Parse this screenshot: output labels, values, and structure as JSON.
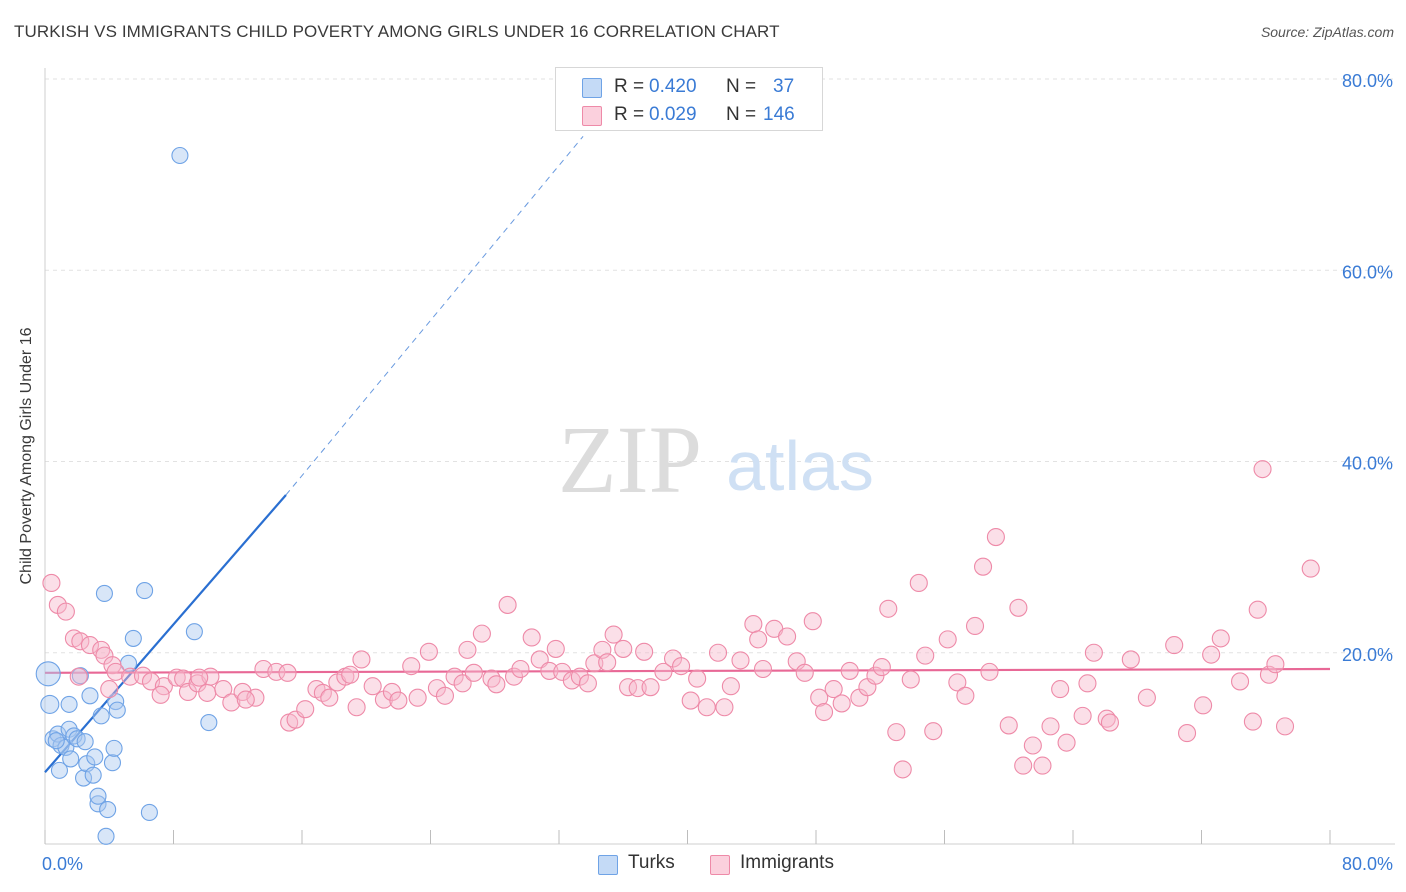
{
  "title": "TURKISH VS IMMIGRANTS CHILD POVERTY AMONG GIRLS UNDER 16 CORRELATION CHART",
  "source": "Source: ZipAtlas.com",
  "watermark": {
    "zip": "ZIP",
    "atlas": "atlas"
  },
  "legend_top": {
    "rows": [
      {
        "r_label": "R =",
        "r_value": "0.420",
        "n_label": "N =",
        "n_value": "37",
        "color": "#a8c8f0"
      },
      {
        "r_label": "R =",
        "r_value": "0.029",
        "n_label": "N =",
        "n_value": "146",
        "color": "#f7b8cb"
      }
    ]
  },
  "legend_bottom": [
    {
      "label": "Turks",
      "color": "#a8c8f0"
    },
    {
      "label": "Immigrants",
      "color": "#f7b8cb"
    }
  ],
  "chart_data": {
    "type": "scatter",
    "title": "TURKISH VS IMMIGRANTS CHILD POVERTY AMONG GIRLS UNDER 16 CORRELATION CHART",
    "xlabel": "",
    "ylabel": "Child Poverty Among Girls Under 16",
    "xlim": [
      0,
      80
    ],
    "ylim": [
      0,
      80
    ],
    "x_tick_labels": [
      "0.0%",
      "80.0%"
    ],
    "y_tick_labels": [
      "20.0%",
      "40.0%",
      "60.0%",
      "80.0%"
    ],
    "y_ticks": [
      20,
      40,
      60,
      80
    ],
    "grid": true,
    "series": [
      {
        "name": "Turks",
        "color": "#6fa3e6",
        "fill": "#a8c8f0",
        "trend": {
          "x0": 0,
          "y0": 7.5,
          "x1": 15,
          "y1": 36.5,
          "dash_to_x": 33.5,
          "dash_to_y": 74,
          "line_color": "#2a6fd1"
        },
        "points": [
          [
            0.2,
            17.8
          ],
          [
            0.3,
            14.6
          ],
          [
            0.5,
            11.0
          ],
          [
            0.8,
            11.5
          ],
          [
            0.9,
            7.7
          ],
          [
            1.0,
            10.3
          ],
          [
            1.3,
            10.1
          ],
          [
            1.5,
            14.6
          ],
          [
            1.5,
            12.0
          ],
          [
            1.6,
            8.9
          ],
          [
            1.8,
            11.3
          ],
          [
            2.0,
            11.0
          ],
          [
            2.2,
            17.6
          ],
          [
            2.4,
            6.9
          ],
          [
            2.5,
            10.7
          ],
          [
            2.6,
            8.4
          ],
          [
            2.8,
            15.5
          ],
          [
            3.0,
            7.2
          ],
          [
            3.1,
            9.1
          ],
          [
            3.3,
            4.2
          ],
          [
            3.3,
            5.0
          ],
          [
            3.5,
            13.4
          ],
          [
            3.7,
            26.2
          ],
          [
            3.8,
            0.8
          ],
          [
            3.9,
            3.6
          ],
          [
            4.2,
            8.5
          ],
          [
            4.3,
            10.0
          ],
          [
            4.4,
            14.9
          ],
          [
            4.5,
            14.0
          ],
          [
            5.2,
            18.9
          ],
          [
            5.5,
            21.5
          ],
          [
            6.2,
            26.5
          ],
          [
            6.5,
            3.3
          ],
          [
            8.4,
            72.0
          ],
          [
            9.3,
            22.2
          ],
          [
            10.2,
            12.7
          ],
          [
            0.7,
            10.8
          ]
        ],
        "sizes": [
          22,
          16,
          14,
          14,
          14,
          14,
          14,
          14,
          14,
          14,
          14,
          14,
          14,
          14,
          14,
          14,
          14,
          14,
          14,
          14,
          14,
          14,
          14,
          14,
          14,
          14,
          14,
          14,
          14,
          14,
          14,
          14,
          14,
          14,
          14,
          14,
          14
        ]
      },
      {
        "name": "Immigrants",
        "color": "#ee8aa8",
        "fill": "#f7b8cb",
        "trend": {
          "x0": 0,
          "y0": 17.9,
          "x1": 80,
          "y1": 18.3,
          "line_color": "#e86896"
        },
        "points": [
          [
            0.4,
            27.3
          ],
          [
            0.8,
            25.0
          ],
          [
            1.3,
            24.3
          ],
          [
            1.8,
            21.5
          ],
          [
            2.1,
            17.5
          ],
          [
            2.2,
            21.2
          ],
          [
            2.8,
            20.8
          ],
          [
            3.5,
            20.3
          ],
          [
            3.7,
            19.7
          ],
          [
            4.0,
            16.2
          ],
          [
            4.2,
            18.7
          ],
          [
            4.4,
            18.0
          ],
          [
            5.3,
            17.5
          ],
          [
            6.1,
            17.6
          ],
          [
            6.6,
            17.0
          ],
          [
            7.4,
            16.5
          ],
          [
            7.2,
            15.6
          ],
          [
            8.2,
            17.4
          ],
          [
            8.6,
            17.3
          ],
          [
            8.9,
            15.9
          ],
          [
            9.5,
            16.8
          ],
          [
            10.1,
            15.8
          ],
          [
            10.3,
            17.5
          ],
          [
            11.1,
            16.2
          ],
          [
            11.6,
            14.8
          ],
          [
            12.3,
            15.9
          ],
          [
            13.1,
            15.3
          ],
          [
            12.5,
            15.1
          ],
          [
            13.6,
            18.3
          ],
          [
            14.4,
            18.0
          ],
          [
            15.1,
            17.9
          ],
          [
            15.2,
            12.7
          ],
          [
            15.6,
            13.0
          ],
          [
            16.2,
            14.1
          ],
          [
            16.9,
            16.2
          ],
          [
            17.3,
            15.8
          ],
          [
            17.7,
            15.3
          ],
          [
            18.2,
            16.9
          ],
          [
            18.7,
            17.5
          ],
          [
            19.0,
            17.7
          ],
          [
            19.4,
            14.3
          ],
          [
            19.7,
            19.3
          ],
          [
            20.4,
            16.5
          ],
          [
            21.1,
            15.1
          ],
          [
            21.6,
            15.9
          ],
          [
            22.0,
            15.0
          ],
          [
            22.8,
            18.6
          ],
          [
            23.2,
            15.3
          ],
          [
            23.9,
            20.1
          ],
          [
            24.4,
            16.3
          ],
          [
            24.9,
            15.5
          ],
          [
            25.5,
            17.5
          ],
          [
            26.0,
            16.8
          ],
          [
            26.3,
            20.3
          ],
          [
            26.7,
            17.9
          ],
          [
            27.2,
            22.0
          ],
          [
            27.8,
            17.3
          ],
          [
            28.1,
            16.7
          ],
          [
            28.8,
            25.0
          ],
          [
            29.2,
            17.5
          ],
          [
            29.6,
            18.3
          ],
          [
            30.3,
            21.6
          ],
          [
            30.8,
            19.3
          ],
          [
            31.4,
            18.1
          ],
          [
            31.8,
            20.4
          ],
          [
            32.2,
            18.0
          ],
          [
            32.8,
            17.1
          ],
          [
            33.3,
            17.5
          ],
          [
            33.8,
            16.8
          ],
          [
            34.2,
            18.9
          ],
          [
            34.7,
            20.3
          ],
          [
            35.0,
            19.0
          ],
          [
            35.4,
            21.9
          ],
          [
            36.0,
            20.4
          ],
          [
            36.3,
            16.4
          ],
          [
            36.9,
            16.3
          ],
          [
            37.3,
            20.1
          ],
          [
            37.7,
            16.4
          ],
          [
            38.5,
            18.0
          ],
          [
            39.1,
            19.4
          ],
          [
            39.6,
            18.6
          ],
          [
            40.2,
            15.0
          ],
          [
            40.6,
            17.3
          ],
          [
            41.2,
            14.3
          ],
          [
            41.9,
            20.0
          ],
          [
            42.3,
            14.3
          ],
          [
            42.7,
            16.5
          ],
          [
            43.3,
            19.2
          ],
          [
            44.1,
            23.0
          ],
          [
            44.4,
            21.4
          ],
          [
            44.7,
            18.3
          ],
          [
            45.4,
            22.5
          ],
          [
            46.2,
            21.7
          ],
          [
            46.8,
            19.1
          ],
          [
            47.3,
            17.9
          ],
          [
            47.8,
            23.3
          ],
          [
            48.2,
            15.3
          ],
          [
            48.5,
            13.8
          ],
          [
            49.1,
            16.2
          ],
          [
            49.6,
            14.7
          ],
          [
            50.1,
            18.1
          ],
          [
            50.7,
            15.3
          ],
          [
            51.2,
            16.4
          ],
          [
            51.7,
            17.6
          ],
          [
            52.1,
            18.5
          ],
          [
            52.5,
            24.6
          ],
          [
            53.0,
            11.7
          ],
          [
            53.4,
            7.8
          ],
          [
            53.9,
            17.2
          ],
          [
            54.4,
            27.3
          ],
          [
            54.8,
            19.7
          ],
          [
            55.3,
            11.8
          ],
          [
            56.2,
            21.4
          ],
          [
            56.8,
            16.9
          ],
          [
            57.3,
            15.5
          ],
          [
            57.9,
            22.8
          ],
          [
            58.4,
            29.0
          ],
          [
            58.8,
            18.0
          ],
          [
            59.2,
            32.1
          ],
          [
            60.0,
            12.4
          ],
          [
            60.6,
            24.7
          ],
          [
            60.9,
            8.2
          ],
          [
            61.5,
            10.3
          ],
          [
            62.1,
            8.2
          ],
          [
            62.6,
            12.3
          ],
          [
            63.2,
            16.2
          ],
          [
            63.6,
            10.6
          ],
          [
            64.6,
            13.4
          ],
          [
            64.9,
            16.8
          ],
          [
            65.3,
            20.0
          ],
          [
            66.1,
            13.1
          ],
          [
            66.3,
            12.7
          ],
          [
            67.6,
            19.3
          ],
          [
            68.6,
            15.3
          ],
          [
            70.3,
            20.8
          ],
          [
            71.1,
            11.6
          ],
          [
            72.1,
            14.5
          ],
          [
            72.6,
            19.8
          ],
          [
            73.2,
            21.5
          ],
          [
            74.4,
            17.0
          ],
          [
            75.2,
            12.8
          ],
          [
            75.5,
            24.5
          ],
          [
            75.8,
            39.2
          ],
          [
            76.2,
            17.7
          ],
          [
            76.6,
            18.8
          ],
          [
            77.2,
            12.3
          ],
          [
            78.8,
            28.8
          ],
          [
            9.6,
            17.4
          ]
        ]
      }
    ]
  }
}
